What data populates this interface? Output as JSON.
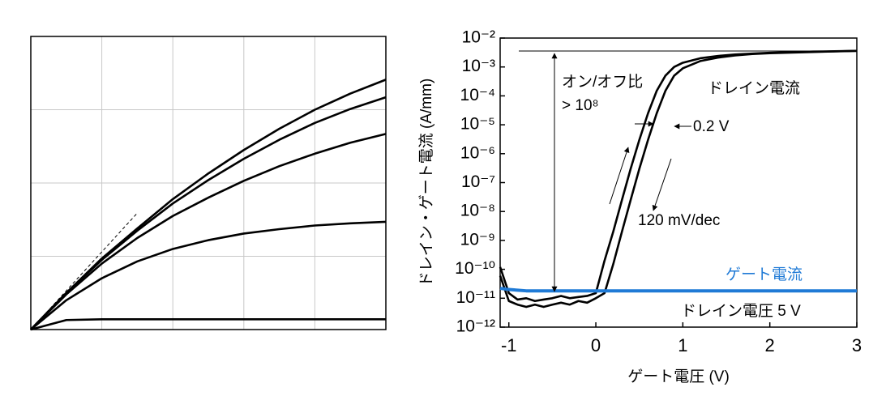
{
  "chart_data": [
    {
      "type": "line",
      "x": [
        0,
        0.5,
        1,
        1.5,
        2,
        2.5,
        3,
        3.5,
        4,
        4.5,
        5
      ],
      "xlim": [
        0,
        5
      ],
      "ylim": [
        0,
        4
      ],
      "xticks": [
        1,
        2,
        3,
        4
      ],
      "yticks": [
        1,
        2,
        3
      ],
      "grid": true,
      "series": [
        {
          "color": "#000000",
          "values": [
            0,
            0.5,
            0.97,
            1.38,
            1.78,
            2.13,
            2.45,
            2.74,
            3.0,
            3.22,
            3.41
          ]
        },
        {
          "color": "#000000",
          "values": [
            0,
            0.5,
            0.95,
            1.35,
            1.72,
            2.04,
            2.33,
            2.59,
            2.82,
            3.01,
            3.17
          ]
        },
        {
          "color": "#000000",
          "values": [
            0,
            0.48,
            0.9,
            1.25,
            1.55,
            1.8,
            2.03,
            2.23,
            2.4,
            2.55,
            2.67
          ]
        },
        {
          "color": "#000000",
          "values": [
            0,
            0.4,
            0.7,
            0.93,
            1.1,
            1.22,
            1.31,
            1.37,
            1.42,
            1.45,
            1.47
          ]
        },
        {
          "color": "#000000",
          "values": [
            0,
            0.13,
            0.14,
            0.14,
            0.14,
            0.14,
            0.14,
            0.14,
            0.14,
            0.14,
            0.14
          ]
        },
        {
          "color": "#000000",
          "dash": true,
          "values": [
            0,
            0.53,
            1.06,
            1.59,
            null,
            null,
            null,
            null,
            null,
            null,
            null
          ]
        }
      ]
    },
    {
      "type": "line",
      "yscale": "log",
      "xlabel": "ゲート電圧 (V)",
      "ylabel": "ドレイン・ゲート電流 (A/mm)",
      "x": [
        -1.1,
        -1.0,
        -0.9,
        -0.8,
        -0.7,
        -0.6,
        -0.5,
        -0.4,
        -0.3,
        -0.2,
        -0.1,
        0,
        0.1,
        0.2,
        0.3,
        0.4,
        0.5,
        0.6,
        0.7,
        0.8,
        0.9,
        1.0,
        1.2,
        1.4,
        1.6,
        1.8,
        2.0,
        2.5,
        3.0
      ],
      "xlim": [
        -1.1,
        3
      ],
      "xticks": [
        -1,
        0,
        1,
        2,
        3
      ],
      "ylim": [
        1e-12,
        0.01
      ],
      "yticks": [
        {
          "value": 1e-12,
          "label": "10⁻¹²"
        },
        {
          "value": 1e-11,
          "label": "10⁻¹¹"
        },
        {
          "value": 1e-10,
          "label": "10⁻¹⁰"
        },
        {
          "value": 1e-09,
          "label": "10⁻⁹"
        },
        {
          "value": 1e-08,
          "label": "10⁻⁸"
        },
        {
          "value": 1e-07,
          "label": "10⁻⁷"
        },
        {
          "value": 1e-06,
          "label": "10⁻⁶"
        },
        {
          "value": 1e-05,
          "label": "10⁻⁵"
        },
        {
          "value": 0.0001,
          "label": "10⁻⁴"
        },
        {
          "value": 0.001,
          "label": "10⁻³"
        },
        {
          "value": 0.01,
          "label": "10⁻²"
        }
      ],
      "series": [
        {
          "color": "#000000",
          "values": [
            1.2e-10,
            1.5e-11,
            9e-12,
            1e-11,
            8e-12,
            9e-12,
            1e-11,
            1.2e-11,
            1e-11,
            1.1e-11,
            1.2e-11,
            1.5e-11,
            2e-10,
            2e-09,
            2.5e-08,
            3e-07,
            3e-06,
            2.5e-05,
            0.00015,
            0.0005,
            0.001,
            0.0014,
            0.002,
            0.0024,
            0.0027,
            0.0029,
            0.0031,
            0.0034,
            0.0036
          ]
        },
        {
          "color": "#000000",
          "values": [
            6e-11,
            8e-12,
            6e-12,
            5e-12,
            6e-12,
            5e-12,
            6e-12,
            7e-12,
            6e-12,
            8e-12,
            7e-12,
            1e-11,
            1.5e-11,
            1.5e-10,
            2e-09,
            2.5e-08,
            3e-07,
            3e-06,
            2.5e-05,
            0.00015,
            0.0005,
            0.0009,
            0.0016,
            0.0021,
            0.0025,
            0.0028,
            0.003,
            0.0033,
            0.0036
          ]
        },
        {
          "name": "ゲート電流",
          "color": "#1f7ad6",
          "values": [
            2.2e-11,
            2e-11,
            1.9e-11,
            1.8e-11,
            1.8e-11,
            1.8e-11,
            1.8e-11,
            1.8e-11,
            1.8e-11,
            1.8e-11,
            1.8e-11,
            1.8e-11,
            1.8e-11,
            1.8e-11,
            1.8e-11,
            1.8e-11,
            1.8e-11,
            1.8e-11,
            1.8e-11,
            1.8e-11,
            1.8e-11,
            1.8e-11,
            1.8e-11,
            1.8e-11,
            1.8e-11,
            1.8e-11,
            1.8e-11,
            1.8e-11,
            1.8e-11
          ]
        }
      ],
      "annotations": [
        "オン/オフ比",
        "> 10⁸",
        "ドレイン電流",
        "0.2 V",
        "120 mV/dec",
        "ドレイン電圧 5 V"
      ]
    }
  ]
}
